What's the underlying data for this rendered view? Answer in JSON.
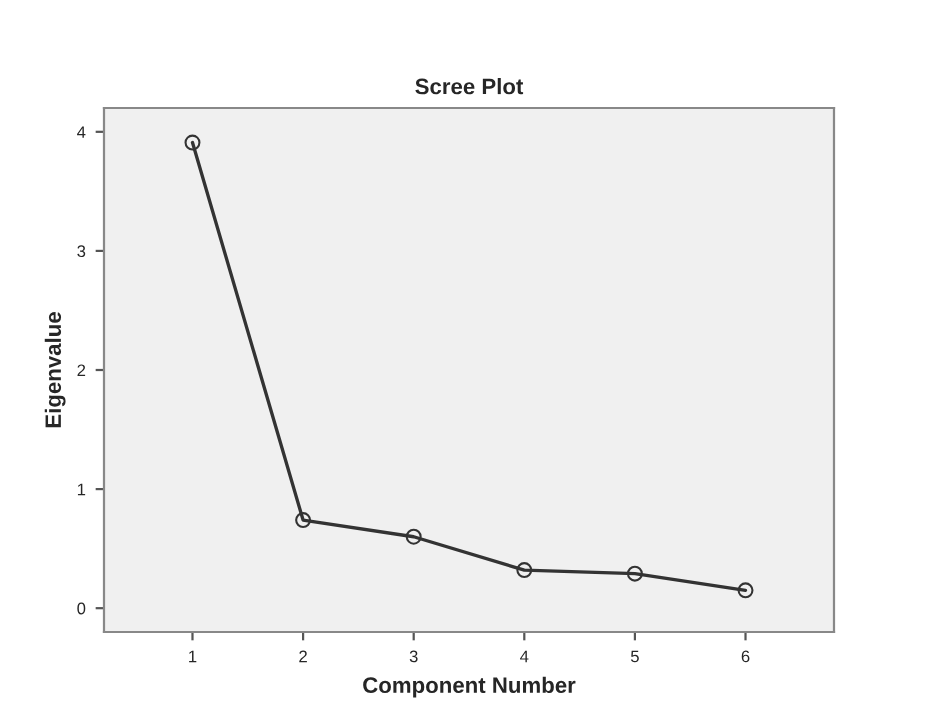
{
  "chart_data": {
    "type": "line",
    "title": "Scree Plot",
    "xlabel": "Component Number",
    "ylabel": "Eigenvalue",
    "x": [
      1,
      2,
      3,
      4,
      5,
      6
    ],
    "series": [
      {
        "color": "#333333",
        "values": [
          3.91,
          0.74,
          0.6,
          0.32,
          0.29,
          0.15
        ]
      }
    ],
    "xlim": [
      0.2,
      6.8
    ],
    "xticks": [
      1,
      2,
      3,
      4,
      5,
      6
    ],
    "ylim": [
      -0.2,
      4.2
    ],
    "yticks": [
      0,
      1,
      2,
      3,
      4
    ],
    "marker": "circle",
    "line_style": "solid",
    "grid": false,
    "legend": false
  }
}
